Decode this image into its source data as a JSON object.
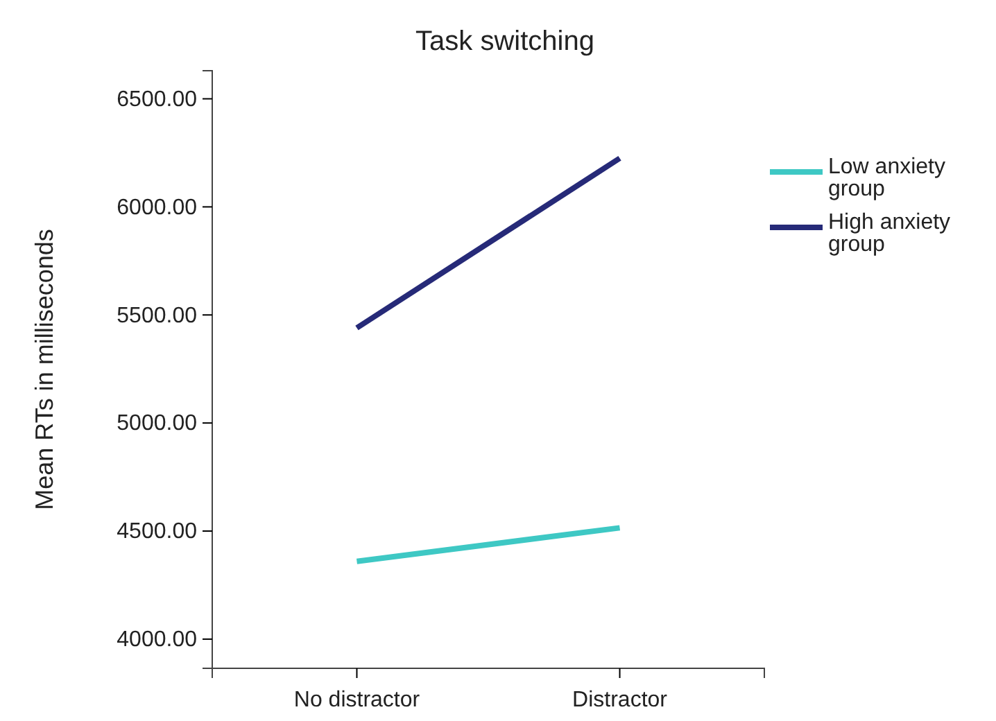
{
  "chart_data": {
    "type": "line",
    "title": "Task switching",
    "ylabel": "Mean RTs in milliseconds",
    "categories": [
      "No distractor",
      "Distractor"
    ],
    "series": [
      {
        "name": "Low anxiety group",
        "color": "#3ec8c4",
        "values": [
          4360,
          4515
        ]
      },
      {
        "name": "High anxiety group",
        "color": "#262a78",
        "values": [
          5440,
          6225
        ]
      }
    ],
    "ylim": [
      3865,
      6630
    ],
    "yticks": [
      {
        "value": 4000,
        "label": "4000.00"
      },
      {
        "value": 4500,
        "label": "4500.00"
      },
      {
        "value": 5000,
        "label": "5000.00"
      },
      {
        "value": 5500,
        "label": "5500.00"
      },
      {
        "value": 6000,
        "label": "6000.00"
      },
      {
        "value": 6500,
        "label": "6500.00"
      }
    ],
    "legend": "right",
    "marker": "none",
    "line_style": "solid"
  }
}
